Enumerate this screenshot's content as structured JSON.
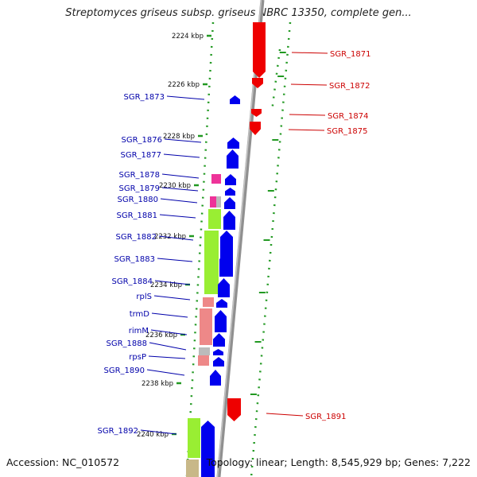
{
  "title": "Streptomyces griseus subsp. griseus NBRC 13350, complete gen...",
  "accession": "Accession: NC_010572",
  "summary": "Topology: linear; Length: 8,545,929 bp; Genes: 7,222",
  "colors": {
    "forward_gene": "#0000ee",
    "reverse_gene": "#ee0000",
    "label_forward": "#0000aa",
    "label_reverse": "#cc0000",
    "backbone": "#909090",
    "ruler_dots": "#229922",
    "cds_green": "#99ee33",
    "cds_pink": "#ee8888",
    "cds_magenta": "#ee3399",
    "cds_olive": "#c8b888"
  },
  "ruler": [
    {
      "label": "2224 kbp"
    },
    {
      "label": "2226 kbp"
    },
    {
      "label": "2228 kbp"
    },
    {
      "label": "2230 kbp"
    },
    {
      "label": "2232 kbp"
    },
    {
      "label": "2234 kbp"
    },
    {
      "label": "2236 kbp"
    },
    {
      "label": "2238 kbp"
    },
    {
      "label": "2240 kbp"
    }
  ],
  "forward_genes": [
    {
      "name": "SGR_1873"
    },
    {
      "name": "SGR_1876"
    },
    {
      "name": "SGR_1877"
    },
    {
      "name": "SGR_1878"
    },
    {
      "name": "SGR_1879"
    },
    {
      "name": "SGR_1880"
    },
    {
      "name": "SGR_1881"
    },
    {
      "name": "SGR_1882"
    },
    {
      "name": "SGR_1883"
    },
    {
      "name": "SGR_1884"
    },
    {
      "name": "rplS"
    },
    {
      "name": "trmD"
    },
    {
      "name": "rimM"
    },
    {
      "name": "SGR_1888"
    },
    {
      "name": "rpsP"
    },
    {
      "name": "SGR_1890"
    },
    {
      "name": "SGR_1892"
    }
  ],
  "reverse_genes": [
    {
      "name": "SGR_1871"
    },
    {
      "name": "SGR_1872"
    },
    {
      "name": "SGR_1874"
    },
    {
      "name": "SGR_1875"
    },
    {
      "name": "SGR_1891"
    }
  ]
}
